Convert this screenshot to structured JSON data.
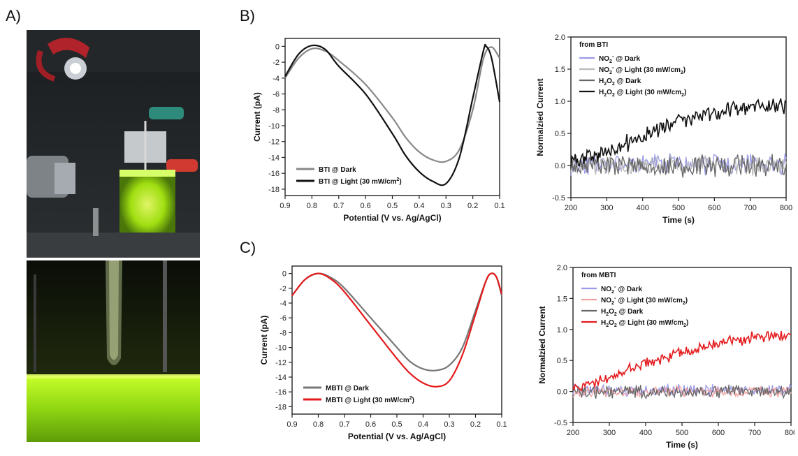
{
  "labels": {
    "A": "A)",
    "B": "B)",
    "C": "C)"
  },
  "colors": {
    "gray": "#888888",
    "dark_gray": "#666666",
    "black": "#111111",
    "red": "#e41a1c",
    "blue_light": "#9a9ae8",
    "pink_light": "#f2a0a0",
    "fluor_green": "#b7f215"
  },
  "photos": [
    {
      "caption": "",
      "icon": "experimental-setup-photo"
    },
    {
      "caption": "",
      "icon": "electrode-solution-photo"
    }
  ],
  "chart_data": [
    {
      "id": "B-cv",
      "type": "line",
      "xlabel": "Potential (V vs. Ag/AgCl)",
      "ylabel": "Current (pA)",
      "xlim": [
        0.9,
        0.1
      ],
      "ylim": [
        -18.8,
        1.0
      ],
      "xticks": [
        "0.9",
        "0.8",
        "0.7",
        "0.6",
        "0.5",
        "0.4",
        "0.3",
        "0.2",
        "0.1"
      ],
      "yticks": [
        "0",
        "-2",
        "-4",
        "-6",
        "-8",
        "-10",
        "-12",
        "-14",
        "-16",
        "-18"
      ],
      "legend_position": "bottom-left",
      "series": [
        {
          "name": "BTI @ Dark",
          "color": "#888888",
          "points": [
            [
              0.9,
              -4.0
            ],
            [
              0.85,
              -1.5
            ],
            [
              0.8,
              -0.3
            ],
            [
              0.75,
              -0.6
            ],
            [
              0.7,
              -1.8
            ],
            [
              0.6,
              -4.8
            ],
            [
              0.5,
              -9.0
            ],
            [
              0.45,
              -11.5
            ],
            [
              0.4,
              -13.3
            ],
            [
              0.35,
              -14.3
            ],
            [
              0.3,
              -14.5
            ],
            [
              0.25,
              -13.0
            ],
            [
              0.2,
              -8.0
            ],
            [
              0.16,
              -1.5
            ],
            [
              0.13,
              -0.1
            ],
            [
              0.1,
              -1.5
            ]
          ]
        },
        {
          "name": "BTI @ Light (30 mW/cm²)",
          "color": "#111111",
          "points": [
            [
              0.9,
              -3.8
            ],
            [
              0.85,
              -1.0
            ],
            [
              0.8,
              0.1
            ],
            [
              0.75,
              -0.4
            ],
            [
              0.7,
              -2.5
            ],
            [
              0.6,
              -6.0
            ],
            [
              0.5,
              -11.0
            ],
            [
              0.45,
              -13.8
            ],
            [
              0.4,
              -15.8
            ],
            [
              0.35,
              -17.0
            ],
            [
              0.3,
              -17.3
            ],
            [
              0.25,
              -14.0
            ],
            [
              0.2,
              -6.5
            ],
            [
              0.16,
              -0.5
            ],
            [
              0.15,
              0.0
            ],
            [
              0.13,
              -1.5
            ],
            [
              0.1,
              -7.0
            ]
          ]
        }
      ]
    },
    {
      "id": "B-nc",
      "type": "line",
      "xlabel": "Time (s)",
      "ylabel": "Normalzied Current",
      "xlim": [
        200,
        800
      ],
      "ylim": [
        -0.5,
        2.0
      ],
      "xticks": [
        "200",
        "300",
        "400",
        "500",
        "600",
        "700",
        "800"
      ],
      "yticks": [
        "-0.5",
        "0.0",
        "0.5",
        "1.0",
        "1.5",
        "2.0"
      ],
      "legend_title": "from BTI",
      "legend_position": "top-left",
      "series": [
        {
          "name": "NO2- @ Dark",
          "name_parts": [
            "NO",
            "2",
            "-",
            " @ Dark"
          ],
          "color": "#9a9ae8",
          "trend": [
            [
              200,
              0.02
            ],
            [
              800,
              0.02
            ]
          ],
          "noise": 0.12
        },
        {
          "name": "NO2- @ Light (30 mW/cm2)",
          "name_parts": [
            "NO",
            "2",
            "-",
            " @ Light (30 mW/cm",
            "2",
            ")"
          ],
          "color": "#bbbbbb",
          "trend": [
            [
              200,
              0.0
            ],
            [
              800,
              0.0
            ]
          ],
          "noise": 0.12
        },
        {
          "name": "H2O2 @ Dark",
          "name_parts": [
            "H",
            "2",
            "O",
            "2",
            " @ Dark"
          ],
          "color": "#666666",
          "trend": [
            [
              200,
              0.0
            ],
            [
              800,
              0.0
            ]
          ],
          "noise": 0.13
        },
        {
          "name": "H2O2 @ Light (30 mW/cm2)",
          "name_parts": [
            "H",
            "2",
            "O",
            "2",
            " @ Light (30 mW/cm",
            "2",
            ")"
          ],
          "color": "#111111",
          "trend": [
            [
              200,
              0.08
            ],
            [
              300,
              0.2
            ],
            [
              400,
              0.45
            ],
            [
              500,
              0.7
            ],
            [
              600,
              0.83
            ],
            [
              700,
              0.93
            ],
            [
              800,
              0.9
            ]
          ],
          "noise": 0.1
        }
      ]
    },
    {
      "id": "C-cv",
      "type": "line",
      "xlabel": "Potential (V vs. Ag/AgCl)",
      "ylabel": "Current (pA)",
      "xlim": [
        0.9,
        0.1
      ],
      "ylim": [
        -19.0,
        1.0
      ],
      "xticks": [
        "0.9",
        "0.8",
        "0.7",
        "0.6",
        "0.5",
        "0.4",
        "0.3",
        "0.2",
        "0.1"
      ],
      "yticks": [
        "0",
        "-2",
        "-4",
        "-6",
        "-8",
        "-10",
        "-12",
        "-14",
        "-16",
        "-18"
      ],
      "legend_position": "bottom-left",
      "series": [
        {
          "name": "MBTI @ Dark",
          "color": "#777777",
          "points": [
            [
              0.9,
              -3.0
            ],
            [
              0.85,
              -0.8
            ],
            [
              0.8,
              0.0
            ],
            [
              0.75,
              -0.6
            ],
            [
              0.7,
              -2.0
            ],
            [
              0.6,
              -6.0
            ],
            [
              0.5,
              -10.0
            ],
            [
              0.45,
              -11.9
            ],
            [
              0.4,
              -12.9
            ],
            [
              0.35,
              -13.1
            ],
            [
              0.3,
              -12.4
            ],
            [
              0.25,
              -10.0
            ],
            [
              0.2,
              -5.0
            ],
            [
              0.16,
              -1.0
            ],
            [
              0.14,
              0.0
            ],
            [
              0.12,
              -0.5
            ],
            [
              0.1,
              -3.0
            ]
          ]
        },
        {
          "name": "MBTI @ Light (30 mW/cm²)",
          "color": "#e41a1c",
          "points": [
            [
              0.9,
              -3.0
            ],
            [
              0.85,
              -0.8
            ],
            [
              0.8,
              0.0
            ],
            [
              0.75,
              -0.8
            ],
            [
              0.7,
              -2.5
            ],
            [
              0.6,
              -7.0
            ],
            [
              0.5,
              -11.5
            ],
            [
              0.45,
              -13.5
            ],
            [
              0.4,
              -14.8
            ],
            [
              0.35,
              -15.3
            ],
            [
              0.3,
              -14.5
            ],
            [
              0.25,
              -11.0
            ],
            [
              0.2,
              -5.5
            ],
            [
              0.16,
              -1.0
            ],
            [
              0.14,
              0.0
            ],
            [
              0.12,
              -0.5
            ],
            [
              0.1,
              -2.8
            ]
          ]
        }
      ]
    },
    {
      "id": "C-nc",
      "type": "line",
      "xlabel": "Time (s)",
      "ylabel": "Normalzied Current",
      "xlim": [
        200,
        800
      ],
      "ylim": [
        -0.5,
        2.0
      ],
      "xticks": [
        "200",
        "300",
        "400",
        "500",
        "600",
        "700",
        "800"
      ],
      "yticks": [
        "-0.5",
        "0.0",
        "0.5",
        "1.0",
        "1.5",
        "2.0"
      ],
      "legend_title": "from MBTI",
      "legend_position": "top-left",
      "series": [
        {
          "name": "NO2- @ Dark",
          "name_parts": [
            "NO",
            "2",
            "-",
            " @ Dark"
          ],
          "color": "#9a9ae8",
          "trend": [
            [
              200,
              0.02
            ],
            [
              800,
              0.02
            ]
          ],
          "noise": 0.07
        },
        {
          "name": "NO2- @ Light (30 mW/cm2)",
          "name_parts": [
            "NO",
            "2",
            "-",
            " @ Light (30 mW/cm",
            "2",
            ")"
          ],
          "color": "#f2a0a0",
          "trend": [
            [
              200,
              0.0
            ],
            [
              800,
              0.0
            ]
          ],
          "noise": 0.07
        },
        {
          "name": "H2O2 @ Dark",
          "name_parts": [
            "H",
            "2",
            "O",
            "2",
            " @ Dark"
          ],
          "color": "#666666",
          "trend": [
            [
              200,
              0.0
            ],
            [
              800,
              0.0
            ]
          ],
          "noise": 0.08
        },
        {
          "name": "H2O2 @ Light (30 mW/cm2)",
          "name_parts": [
            "H",
            "2",
            "O",
            "2",
            " @ Light (30 mW/cm",
            "2",
            ")"
          ],
          "color": "#e41a1c",
          "trend": [
            [
              200,
              0.05
            ],
            [
              300,
              0.22
            ],
            [
              400,
              0.45
            ],
            [
              500,
              0.62
            ],
            [
              600,
              0.78
            ],
            [
              700,
              0.88
            ],
            [
              800,
              0.9
            ]
          ],
          "noise": 0.07
        }
      ]
    }
  ]
}
